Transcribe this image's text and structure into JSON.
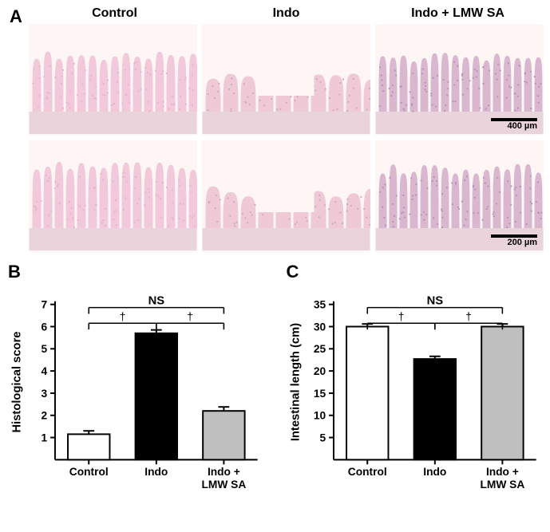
{
  "panelA": {
    "label": "A",
    "columns": [
      "Control",
      "Indo",
      "Indo + LMW SA"
    ],
    "scalebars": {
      "top": "400 µm",
      "bottom": "200 µm"
    },
    "histology": {
      "bgColor": "#fdf6f4",
      "tissueColor": "#f2c9da",
      "nucleiColor": "#caa6c9",
      "muscularisColor": "#e9d4dc"
    }
  },
  "panelB": {
    "label": "B",
    "type": "bar",
    "ylabel": "Histological score",
    "categories": [
      "Control",
      "Indo",
      "Indo +\nLMW SA"
    ],
    "values": [
      1.15,
      5.7,
      2.2
    ],
    "errors": [
      0.15,
      0.15,
      0.18
    ],
    "bar_colors": [
      "#ffffff",
      "#000000",
      "#bfbfbf"
    ],
    "ylim": [
      0,
      7
    ],
    "yticks": [
      1,
      2,
      3,
      4,
      5,
      6,
      7
    ],
    "sig": {
      "outer": {
        "a": 0,
        "b": 2,
        "text": "NS"
      },
      "inner": [
        {
          "a": 0,
          "b": 1,
          "text": "†"
        },
        {
          "a": 1,
          "b": 2,
          "text": "†"
        }
      ]
    },
    "axis_color": "#000000",
    "label_fontsize": 15,
    "tick_fontsize": 14,
    "cat_fontsize": 14,
    "bar_stroke": "#000000"
  },
  "panelC": {
    "label": "C",
    "type": "bar",
    "ylabel": "Intestinal length (cm)",
    "categories": [
      "Control",
      "Indo",
      "Indo +\nLMW SA"
    ],
    "values": [
      30,
      22.7,
      30
    ],
    "errors": [
      0.6,
      0.6,
      0.6
    ],
    "bar_colors": [
      "#ffffff",
      "#000000",
      "#bfbfbf"
    ],
    "ylim": [
      0,
      35
    ],
    "yticks": [
      5,
      10,
      15,
      20,
      25,
      30,
      35
    ],
    "sig": {
      "outer": {
        "a": 0,
        "b": 2,
        "text": "NS"
      },
      "inner": [
        {
          "a": 0,
          "b": 1,
          "text": "†"
        },
        {
          "a": 1,
          "b": 2,
          "text": "†"
        }
      ]
    },
    "axis_color": "#000000",
    "label_fontsize": 15,
    "tick_fontsize": 14,
    "cat_fontsize": 14,
    "bar_stroke": "#000000"
  }
}
